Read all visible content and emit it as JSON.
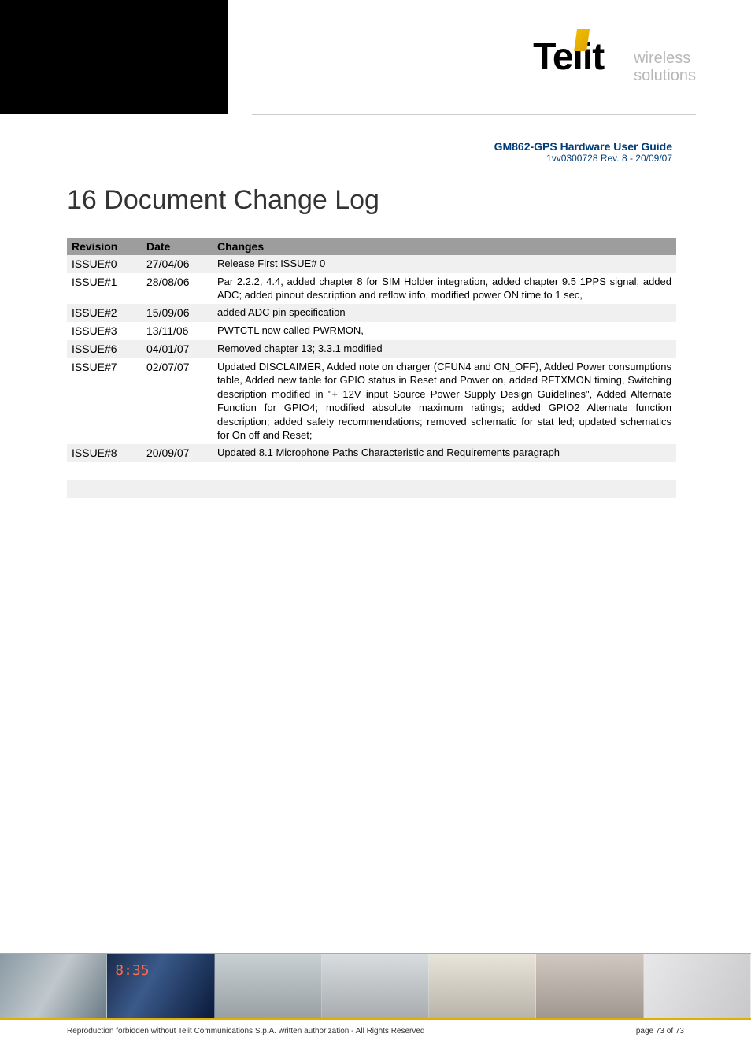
{
  "header": {
    "brand_main": "Telit",
    "brand_sub1": "wireless",
    "brand_sub2": "solutions",
    "doc_title": "GM862-GPS Hardware User Guide",
    "doc_rev": "1vv0300728 Rev. 8 - 20/09/07"
  },
  "chapter": {
    "title": "16  Document Change Log"
  },
  "table": {
    "headers": {
      "rev": "Revision",
      "date": "Date",
      "changes": "Changes"
    },
    "rows": [
      {
        "rev": "ISSUE#0",
        "date": "27/04/06",
        "changes": "Release First ISSUE# 0"
      },
      {
        "rev": "ISSUE#1",
        "date": "28/08/06",
        "changes": "Par 2.2.2, 4.4, added chapter 8 for SIM Holder integration, added chapter 9.5 1PPS signal; added ADC; added pinout description and reflow info, modified power ON time to 1 sec,"
      },
      {
        "rev": "ISSUE#2",
        "date": "15/09/06",
        "changes": "added ADC pin specification"
      },
      {
        "rev": "ISSUE#3",
        "date": "13/11/06",
        "changes": "PWTCTL now called PWRMON,"
      },
      {
        "rev": "ISSUE#6",
        "date": "04/01/07",
        "changes": "Removed chapter 13; 3.3.1 modified"
      },
      {
        "rev": "ISSUE#7",
        "date": "02/07/07",
        "changes": "Updated DISCLAIMER, Added note on charger (CFUN4 and ON_OFF), Added Power consumptions table, Added new table for GPIO status in Reset and Power on, added RFTXMON timing, Switching description modified in \"+ 12V input Source Power Supply Design Guidelines\", Added Alternate Function for GPIO4; modified absolute maximum ratings; added GPIO2 Alternate function description; added safety recommendations; removed schematic for stat led; updated schematics for On off and Reset;"
      },
      {
        "rev": "ISSUE#8",
        "date": "20/09/07",
        "changes": "Updated 8.1 Microphone Paths Characteristic and Requirements paragraph"
      },
      {
        "rev": "",
        "date": "",
        "changes": ""
      },
      {
        "rev": "",
        "date": "",
        "changes": ""
      },
      {
        "rev": "",
        "date": "",
        "changes": ""
      }
    ]
  },
  "footer": {
    "copyright": "Reproduction forbidden without Telit Communications S.p.A. written authorization - All Rights Reserved",
    "page": "page 73 of 73"
  },
  "colors": {
    "title_blue": "#003d7a",
    "header_gray": "#9d9d9d",
    "row_odd": "#f0f0f0",
    "row_even": "#ffffff",
    "accent_gold": "#e0b000"
  }
}
